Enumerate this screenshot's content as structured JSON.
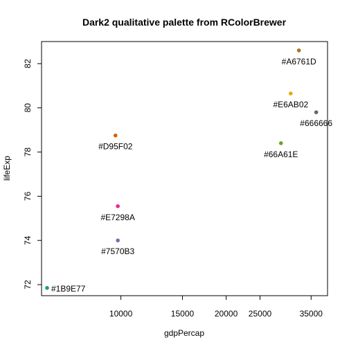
{
  "chart_data": {
    "type": "scatter",
    "title": "Dark2 qualitative palette from RColorBrewer",
    "xlabel": "gdpPercap",
    "ylabel": "lifeExp",
    "x_scale": "log",
    "xlim": [
      5930,
      39000
    ],
    "ylim": [
      71.5,
      83
    ],
    "x_ticks": [
      10000,
      15000,
      20000,
      25000,
      35000
    ],
    "x_tick_labels": [
      "10000",
      "15000",
      "20000",
      "25000",
      "35000"
    ],
    "y_ticks": [
      72,
      74,
      76,
      78,
      80,
      82
    ],
    "y_tick_labels": [
      "72",
      "74",
      "76",
      "78",
      "80",
      "82"
    ],
    "grid": false,
    "points": [
      {
        "x": 6150,
        "y": 71.85,
        "color": "#1B9E77",
        "label": "#1B9E77",
        "label_pos": "right"
      },
      {
        "x": 9650,
        "y": 78.75,
        "color": "#D95F02",
        "label": "#D95F02",
        "label_pos": "below"
      },
      {
        "x": 9800,
        "y": 74.0,
        "color": "#7570B3",
        "label": "#7570B3",
        "label_pos": "below"
      },
      {
        "x": 9800,
        "y": 75.55,
        "color": "#E7298A",
        "label": "#E7298A",
        "label_pos": "below"
      },
      {
        "x": 28700,
        "y": 78.4,
        "color": "#66A61E",
        "label": "#66A61E",
        "label_pos": "below"
      },
      {
        "x": 30600,
        "y": 80.65,
        "color": "#E6AB02",
        "label": "#E6AB02",
        "label_pos": "below"
      },
      {
        "x": 32300,
        "y": 82.6,
        "color": "#A6761D",
        "label": "#A6761D",
        "label_pos": "below"
      },
      {
        "x": 36200,
        "y": 79.8,
        "color": "#666666",
        "label": "#666666",
        "label_pos": "below"
      }
    ]
  }
}
